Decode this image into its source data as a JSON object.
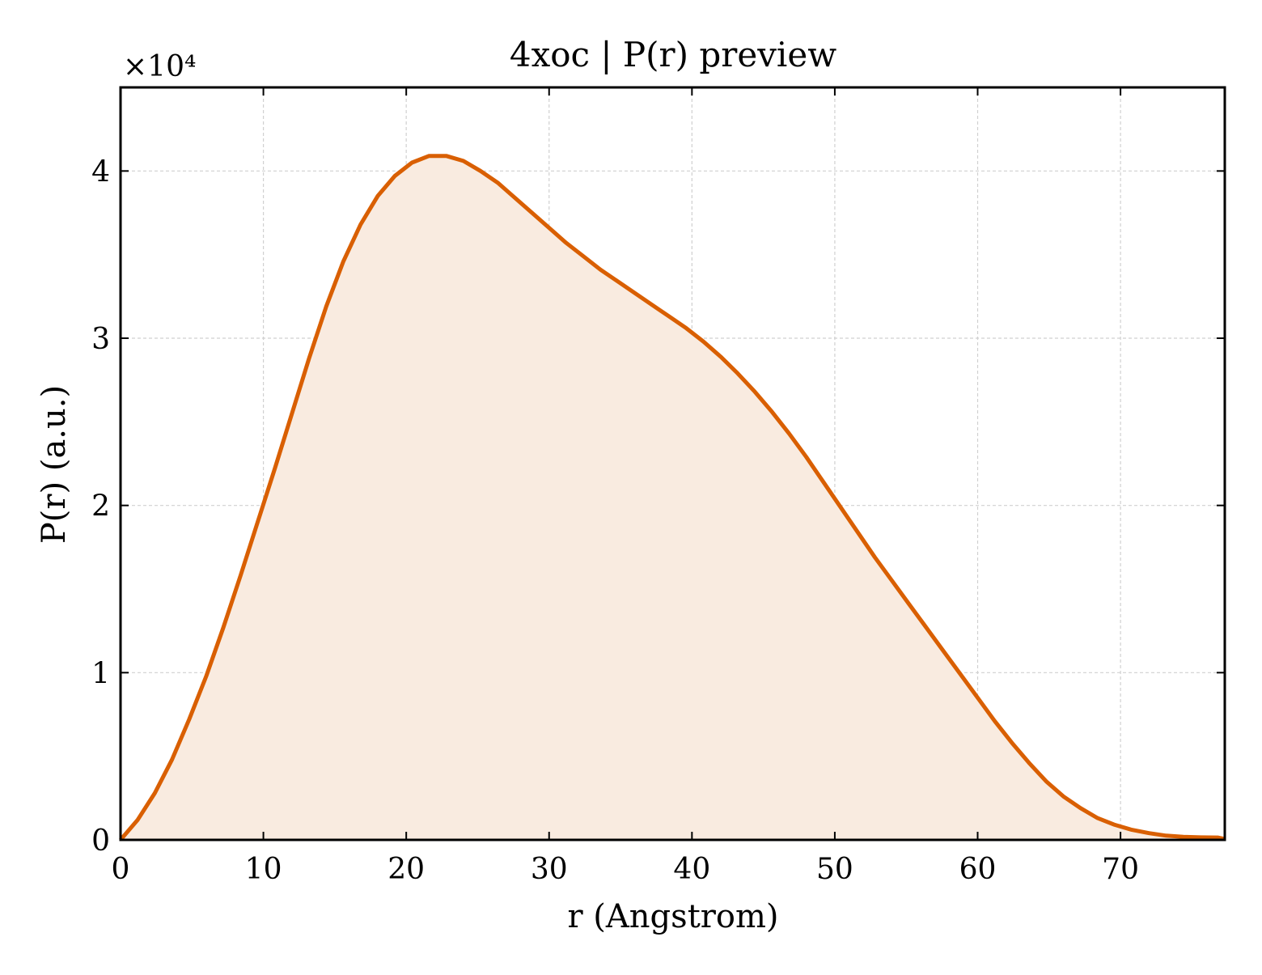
{
  "chart_data": {
    "type": "area",
    "title": "4xoc | P(r) preview",
    "xlabel": "r (Angstrom)",
    "ylabel": "P(r) (a.u.)",
    "y_multiplier_label": "×10⁴",
    "xlim": [
      0,
      77.3
    ],
    "ylim": [
      0,
      4.5
    ],
    "y_scale_note": "values in units of 10^4",
    "xticks": [
      0,
      10,
      20,
      30,
      40,
      50,
      60,
      70
    ],
    "yticks": [
      0,
      1,
      2,
      3,
      4
    ],
    "grid": true,
    "legend": "none",
    "colors": {
      "line": "#d95f02",
      "fill": "#f9ebe0"
    },
    "series": [
      {
        "x": [
          0,
          1.2,
          2.4,
          3.6,
          4.8,
          6.0,
          7.2,
          8.4,
          9.6,
          10.8,
          12.0,
          13.2,
          14.4,
          15.6,
          16.8,
          18.0,
          19.2,
          20.4,
          21.6,
          22.8,
          24.0,
          25.2,
          26.4,
          27.6,
          28.8,
          30.0,
          31.2,
          32.4,
          33.6,
          34.8,
          36.0,
          37.2,
          38.4,
          39.6,
          40.8,
          42.0,
          43.2,
          44.4,
          45.6,
          46.8,
          48.0,
          49.2,
          50.4,
          51.6,
          52.8,
          54.0,
          55.2,
          56.4,
          57.6,
          58.8,
          60.0,
          61.2,
          62.4,
          63.6,
          64.8,
          66.0,
          67.2,
          68.4,
          69.6,
          70.8,
          72.0,
          73.2,
          74.4,
          75.6,
          76.8,
          77.3
        ],
        "values": [
          0,
          0.12,
          0.28,
          0.48,
          0.72,
          0.98,
          1.27,
          1.58,
          1.9,
          2.22,
          2.55,
          2.88,
          3.19,
          3.46,
          3.68,
          3.85,
          3.97,
          4.05,
          4.09,
          4.09,
          4.06,
          4.0,
          3.93,
          3.84,
          3.75,
          3.66,
          3.57,
          3.49,
          3.41,
          3.34,
          3.27,
          3.2,
          3.13,
          3.06,
          2.98,
          2.89,
          2.79,
          2.68,
          2.56,
          2.43,
          2.29,
          2.14,
          1.99,
          1.84,
          1.69,
          1.55,
          1.41,
          1.27,
          1.13,
          0.99,
          0.85,
          0.71,
          0.58,
          0.46,
          0.35,
          0.26,
          0.19,
          0.13,
          0.09,
          0.06,
          0.04,
          0.025,
          0.018,
          0.015,
          0.014,
          0.005
        ]
      }
    ]
  }
}
